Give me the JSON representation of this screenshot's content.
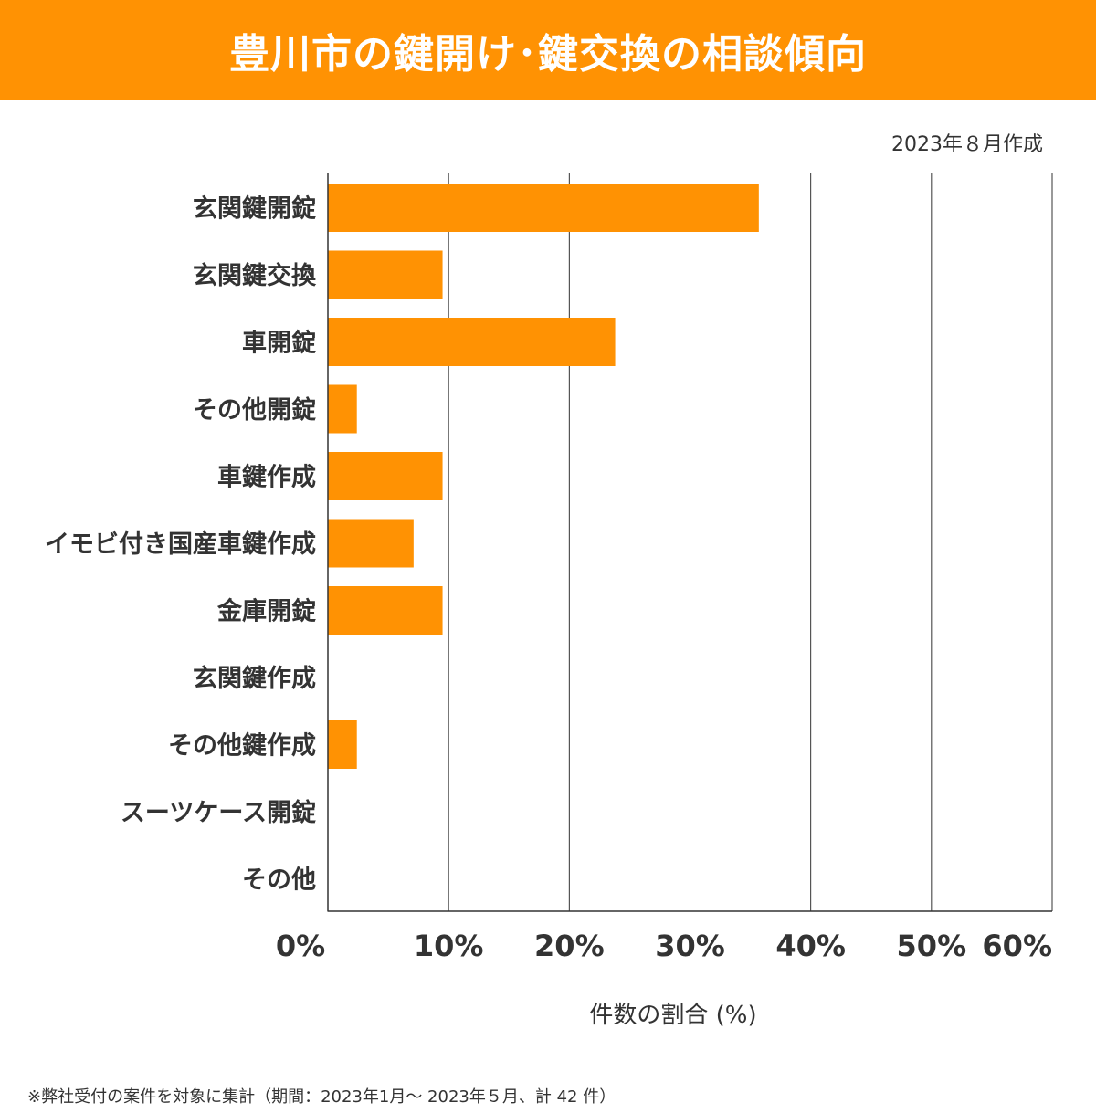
{
  "header": {
    "title": "豊川市の鍵開け･鍵交換の相談傾向"
  },
  "date_note": "2023年８月作成",
  "footnote": "※弊社受付の案件を対象に集計（期間：2023年1月～ 2023年５月、計 42 件）",
  "chart_data": {
    "type": "bar",
    "orientation": "horizontal",
    "categories": [
      "玄関鍵開錠",
      "玄関鍵交換",
      "車開錠",
      "その他開錠",
      "車鍵作成",
      "イモビ付き国産車鍵作成",
      "金庫開錠",
      "玄関鍵作成",
      "その他鍵作成",
      "スーツケース開錠",
      "その他"
    ],
    "values": [
      35.7,
      9.5,
      23.8,
      2.4,
      9.5,
      7.1,
      9.5,
      0,
      2.4,
      0,
      0
    ],
    "xlim": [
      0,
      60
    ],
    "xticks": [
      0,
      10,
      20,
      30,
      40,
      50,
      60
    ],
    "xtick_labels": [
      "0%",
      "10%",
      "20%",
      "30%",
      "40%",
      "50%",
      "60%"
    ],
    "xlabel": "件数の割合 (%)",
    "grid": "vertical",
    "bar_color": "#ff9203"
  }
}
